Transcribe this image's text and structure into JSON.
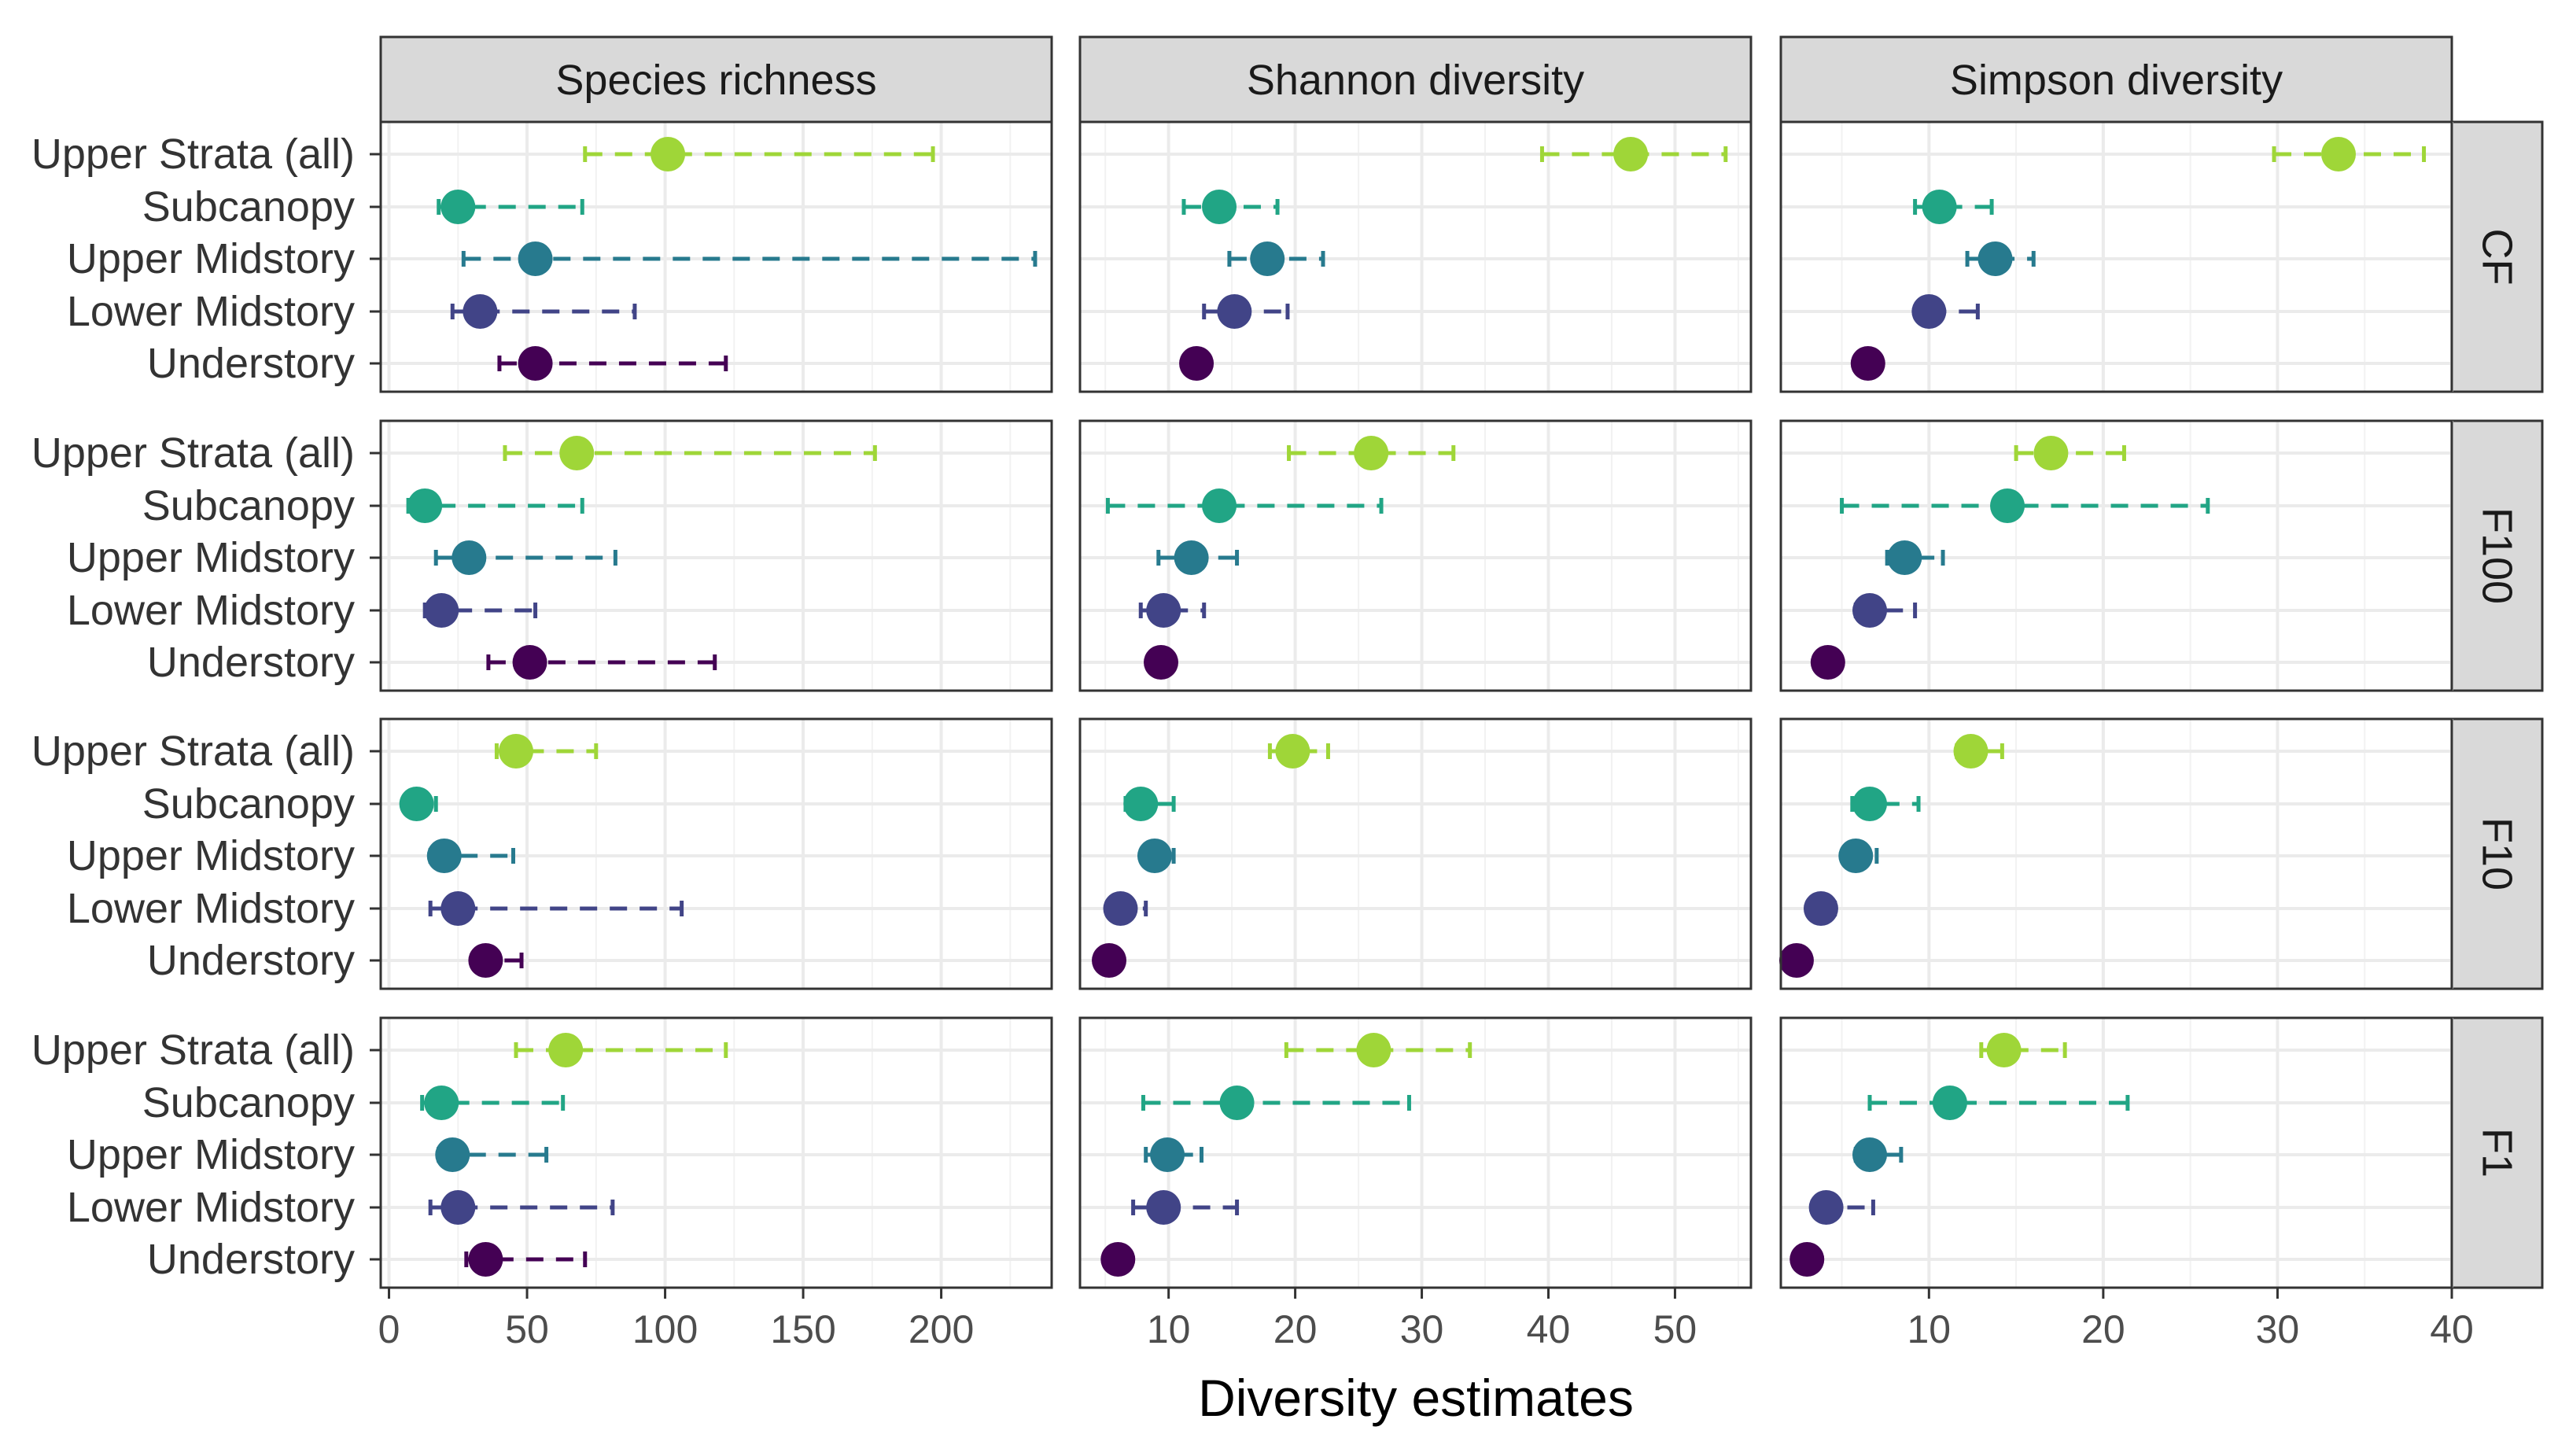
{
  "chart_data": {
    "type": "scatter",
    "subtype": "faceted point estimates with confidence intervals",
    "xlabel": "Diversity estimates",
    "ylabel": "",
    "facet_columns": [
      "Species richness",
      "Shannon diversity",
      "Simpson diversity"
    ],
    "facet_rows": [
      "CF",
      "F100",
      "F10",
      "F1"
    ],
    "categories": [
      "Upper Strata (all)",
      "Subcanopy",
      "Upper Midstory",
      "Lower Midstory",
      "Understory"
    ],
    "colors": {
      "Upper Strata (all)": "#9fd638",
      "Subcanopy": "#21a585",
      "Upper Midstory": "#277a8e",
      "Lower Midstory": "#414487",
      "Understory": "#440154"
    },
    "x_axes": [
      {
        "xlim": [
          -3,
          240
        ],
        "ticks": [
          0,
          50,
          100,
          150,
          200
        ],
        "tick_labels": [
          "0",
          "50",
          "100",
          "150",
          "200"
        ]
      },
      {
        "xlim": [
          3,
          56
        ],
        "ticks": [
          10,
          20,
          30,
          40,
          50
        ],
        "tick_labels": [
          "10",
          "20",
          "30",
          "40",
          "50"
        ]
      },
      {
        "xlim": [
          1.5,
          40
        ],
        "ticks": [
          10,
          20,
          30,
          40
        ],
        "tick_labels": [
          "10",
          "20",
          "30",
          "40"
        ]
      }
    ],
    "grid": true,
    "panels": [
      {
        "row": "CF",
        "column": "Species richness",
        "points": [
          {
            "category": "Upper Strata (all)",
            "estimate": 101,
            "lower": 71,
            "upper": 197
          },
          {
            "category": "Subcanopy",
            "estimate": 25,
            "lower": 18,
            "upper": 70
          },
          {
            "category": "Upper Midstory",
            "estimate": 53,
            "lower": 27,
            "upper": 234
          },
          {
            "category": "Lower Midstory",
            "estimate": 33,
            "lower": 23,
            "upper": 89
          },
          {
            "category": "Understory",
            "estimate": 53,
            "lower": 40,
            "upper": 122
          }
        ]
      },
      {
        "row": "CF",
        "column": "Shannon diversity",
        "points": [
          {
            "category": "Upper Strata (all)",
            "estimate": 46.5,
            "lower": 39.5,
            "upper": 54
          },
          {
            "category": "Subcanopy",
            "estimate": 14,
            "lower": 11.2,
            "upper": 18.6
          },
          {
            "category": "Upper Midstory",
            "estimate": 17.8,
            "lower": 14.8,
            "upper": 22.2
          },
          {
            "category": "Lower Midstory",
            "estimate": 15.2,
            "lower": 12.8,
            "upper": 19.4
          },
          {
            "category": "Understory",
            "estimate": 12.2,
            "lower": 11.8,
            "upper": 12.8
          }
        ]
      },
      {
        "row": "CF",
        "column": "Simpson diversity",
        "points": [
          {
            "category": "Upper Strata (all)",
            "estimate": 33.5,
            "lower": 29.8,
            "upper": 38.4
          },
          {
            "category": "Subcanopy",
            "estimate": 10.6,
            "lower": 9.2,
            "upper": 13.6
          },
          {
            "category": "Upper Midstory",
            "estimate": 13.8,
            "lower": 12.2,
            "upper": 16
          },
          {
            "category": "Lower Midstory",
            "estimate": 10,
            "lower": 10,
            "upper": 12.8
          },
          {
            "category": "Understory",
            "estimate": 6.5,
            "lower": 6.3,
            "upper": 6.8
          }
        ]
      },
      {
        "row": "F100",
        "column": "Species richness",
        "points": [
          {
            "category": "Upper Strata (all)",
            "estimate": 68,
            "lower": 42,
            "upper": 176
          },
          {
            "category": "Subcanopy",
            "estimate": 13,
            "lower": 7,
            "upper": 70
          },
          {
            "category": "Upper Midstory",
            "estimate": 29,
            "lower": 17,
            "upper": 82
          },
          {
            "category": "Lower Midstory",
            "estimate": 19,
            "lower": 13,
            "upper": 53
          },
          {
            "category": "Understory",
            "estimate": 51,
            "lower": 36,
            "upper": 118
          }
        ]
      },
      {
        "row": "F100",
        "column": "Shannon diversity",
        "points": [
          {
            "category": "Upper Strata (all)",
            "estimate": 26,
            "lower": 19.5,
            "upper": 32.5
          },
          {
            "category": "Subcanopy",
            "estimate": 14,
            "lower": 5.2,
            "upper": 26.8
          },
          {
            "category": "Upper Midstory",
            "estimate": 11.8,
            "lower": 9.2,
            "upper": 15.4
          },
          {
            "category": "Lower Midstory",
            "estimate": 9.6,
            "lower": 7.8,
            "upper": 12.8
          },
          {
            "category": "Understory",
            "estimate": 9.4,
            "lower": 8.8,
            "upper": 9.8
          }
        ]
      },
      {
        "row": "F100",
        "column": "Simpson diversity",
        "points": [
          {
            "category": "Upper Strata (all)",
            "estimate": 17,
            "lower": 15,
            "upper": 21.2
          },
          {
            "category": "Subcanopy",
            "estimate": 14.5,
            "lower": 5,
            "upper": 26
          },
          {
            "category": "Upper Midstory",
            "estimate": 8.6,
            "lower": 7.6,
            "upper": 10.8
          },
          {
            "category": "Lower Midstory",
            "estimate": 6.6,
            "lower": 5.8,
            "upper": 9.2
          },
          {
            "category": "Understory",
            "estimate": 4.2,
            "lower": 4,
            "upper": 4.4
          }
        ]
      },
      {
        "row": "F10",
        "column": "Species richness",
        "points": [
          {
            "category": "Upper Strata (all)",
            "estimate": 46,
            "lower": 39,
            "upper": 75
          },
          {
            "category": "Subcanopy",
            "estimate": 10,
            "lower": 8,
            "upper": 17
          },
          {
            "category": "Upper Midstory",
            "estimate": 20,
            "lower": 15,
            "upper": 45
          },
          {
            "category": "Lower Midstory",
            "estimate": 25,
            "lower": 15,
            "upper": 106
          },
          {
            "category": "Understory",
            "estimate": 35,
            "lower": 31,
            "upper": 48
          }
        ]
      },
      {
        "row": "F10",
        "column": "Shannon diversity",
        "points": [
          {
            "category": "Upper Strata (all)",
            "estimate": 19.8,
            "lower": 18,
            "upper": 22.6
          },
          {
            "category": "Subcanopy",
            "estimate": 7.8,
            "lower": 6.6,
            "upper": 10.4
          },
          {
            "category": "Upper Midstory",
            "estimate": 8.9,
            "lower": 8,
            "upper": 10.4
          },
          {
            "category": "Lower Midstory",
            "estimate": 6.2,
            "lower": 5.6,
            "upper": 8.2
          },
          {
            "category": "Understory",
            "estimate": 5.3,
            "lower": 5.1,
            "upper": 5.5
          }
        ]
      },
      {
        "row": "F10",
        "column": "Simpson diversity",
        "points": [
          {
            "category": "Upper Strata (all)",
            "estimate": 12.4,
            "lower": 11.6,
            "upper": 14.2
          },
          {
            "category": "Subcanopy",
            "estimate": 6.6,
            "lower": 5.6,
            "upper": 9.4
          },
          {
            "category": "Upper Midstory",
            "estimate": 5.8,
            "lower": 5.2,
            "upper": 7
          },
          {
            "category": "Lower Midstory",
            "estimate": 3.8,
            "lower": 3.4,
            "upper": 4.6
          },
          {
            "category": "Understory",
            "estimate": 2.4,
            "lower": 2.2,
            "upper": 2.6
          }
        ]
      },
      {
        "row": "F1",
        "column": "Species richness",
        "points": [
          {
            "category": "Upper Strata (all)",
            "estimate": 64,
            "lower": 46,
            "upper": 122
          },
          {
            "category": "Subcanopy",
            "estimate": 19,
            "lower": 12,
            "upper": 63
          },
          {
            "category": "Upper Midstory",
            "estimate": 23,
            "lower": 18,
            "upper": 57
          },
          {
            "category": "Lower Midstory",
            "estimate": 25,
            "lower": 15,
            "upper": 81
          },
          {
            "category": "Understory",
            "estimate": 35,
            "lower": 28,
            "upper": 71
          }
        ]
      },
      {
        "row": "F1",
        "column": "Shannon diversity",
        "points": [
          {
            "category": "Upper Strata (all)",
            "estimate": 26.2,
            "lower": 19.3,
            "upper": 33.8
          },
          {
            "category": "Subcanopy",
            "estimate": 15.4,
            "lower": 8,
            "upper": 29
          },
          {
            "category": "Upper Midstory",
            "estimate": 9.9,
            "lower": 8.2,
            "upper": 12.6
          },
          {
            "category": "Lower Midstory",
            "estimate": 9.6,
            "lower": 7.2,
            "upper": 15.4
          },
          {
            "category": "Understory",
            "estimate": 6,
            "lower": 5.7,
            "upper": 6.3
          }
        ]
      },
      {
        "row": "F1",
        "column": "Simpson diversity",
        "points": [
          {
            "category": "Upper Strata (all)",
            "estimate": 14.3,
            "lower": 13,
            "upper": 17.8
          },
          {
            "category": "Subcanopy",
            "estimate": 11.2,
            "lower": 6.6,
            "upper": 21.4
          },
          {
            "category": "Upper Midstory",
            "estimate": 6.6,
            "lower": 5.8,
            "upper": 8.4
          },
          {
            "category": "Lower Midstory",
            "estimate": 4.1,
            "lower": 3.6,
            "upper": 6.8
          },
          {
            "category": "Understory",
            "estimate": 3,
            "lower": 2.8,
            "upper": 3.2
          }
        ]
      }
    ]
  }
}
